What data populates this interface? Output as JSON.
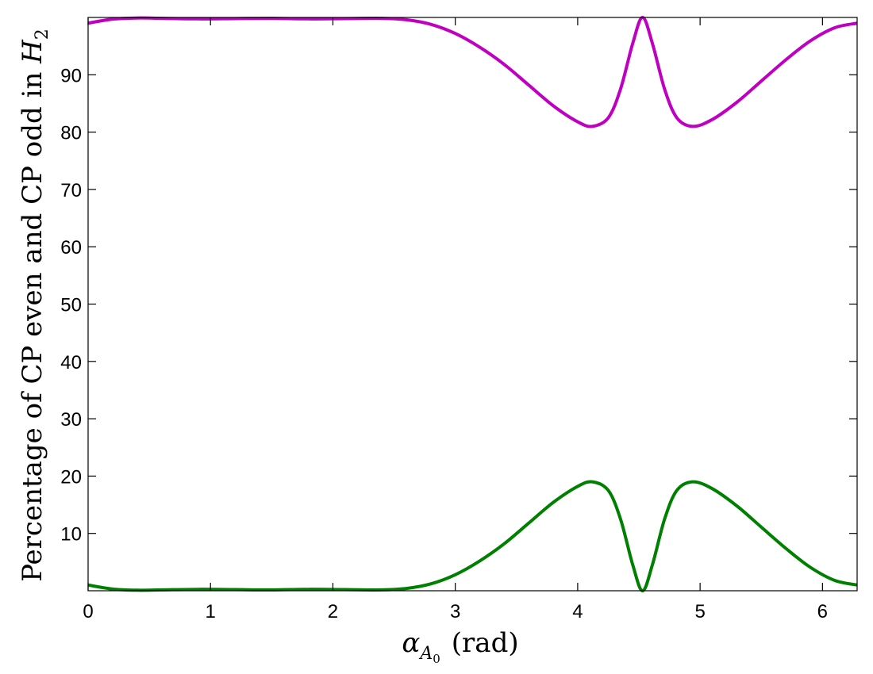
{
  "chart_data": {
    "type": "line",
    "xlabel": {
      "symbol": "α",
      "sub": "A",
      "subsub": "0",
      "unit": "(rad)"
    },
    "ylabel": {
      "text": "Percentage of CP even and CP odd in ",
      "symbol": "H",
      "sub": "2"
    },
    "xlim": [
      0,
      6.283
    ],
    "ylim": [
      0,
      100
    ],
    "xticks": [
      0,
      1,
      2,
      3,
      4,
      5,
      6
    ],
    "xtick_labels": [
      "0",
      "1",
      "2",
      "3",
      "4",
      "5",
      "6"
    ],
    "yticks": [
      10,
      20,
      30,
      40,
      50,
      60,
      70,
      80,
      90
    ],
    "ytick_labels": [
      "10",
      "20",
      "30",
      "40",
      "50",
      "60",
      "70",
      "80",
      "90"
    ],
    "grid": false,
    "series": [
      {
        "color": "#c000c0",
        "x": [
          0,
          0.2,
          0.4,
          0.6,
          0.9,
          1.2,
          1.5,
          1.8,
          2.1,
          2.4,
          2.6,
          2.8,
          3.0,
          3.2,
          3.4,
          3.6,
          3.8,
          4.0,
          4.12,
          4.25,
          4.35,
          4.45,
          4.53,
          4.61,
          4.71,
          4.81,
          4.94,
          5.1,
          5.3,
          5.5,
          5.7,
          5.9,
          6.1,
          6.283
        ],
        "y": [
          99.0,
          99.7,
          99.9,
          99.85,
          99.75,
          99.8,
          99.85,
          99.75,
          99.8,
          99.85,
          99.6,
          98.8,
          97.2,
          94.8,
          91.8,
          88.2,
          84.6,
          81.8,
          81.0,
          82.5,
          87.5,
          95.5,
          100.0,
          95.5,
          87.5,
          82.5,
          81.0,
          82.2,
          85.2,
          88.9,
          92.6,
          95.9,
          98.2,
          99.0
        ]
      },
      {
        "color": "#008000",
        "x": [
          0,
          0.2,
          0.4,
          0.6,
          0.9,
          1.2,
          1.5,
          1.8,
          2.1,
          2.4,
          2.6,
          2.8,
          3.0,
          3.2,
          3.4,
          3.6,
          3.8,
          4.0,
          4.12,
          4.25,
          4.35,
          4.45,
          4.53,
          4.61,
          4.71,
          4.81,
          4.94,
          5.1,
          5.3,
          5.5,
          5.7,
          5.9,
          6.1,
          6.283
        ],
        "y": [
          1.0,
          0.3,
          0.1,
          0.15,
          0.25,
          0.2,
          0.15,
          0.25,
          0.2,
          0.15,
          0.4,
          1.2,
          2.8,
          5.2,
          8.2,
          11.8,
          15.4,
          18.2,
          19.0,
          17.5,
          12.5,
          4.5,
          0.0,
          4.5,
          12.5,
          17.5,
          19.0,
          17.8,
          14.8,
          11.1,
          7.4,
          4.1,
          1.8,
          1.0
        ]
      }
    ]
  }
}
